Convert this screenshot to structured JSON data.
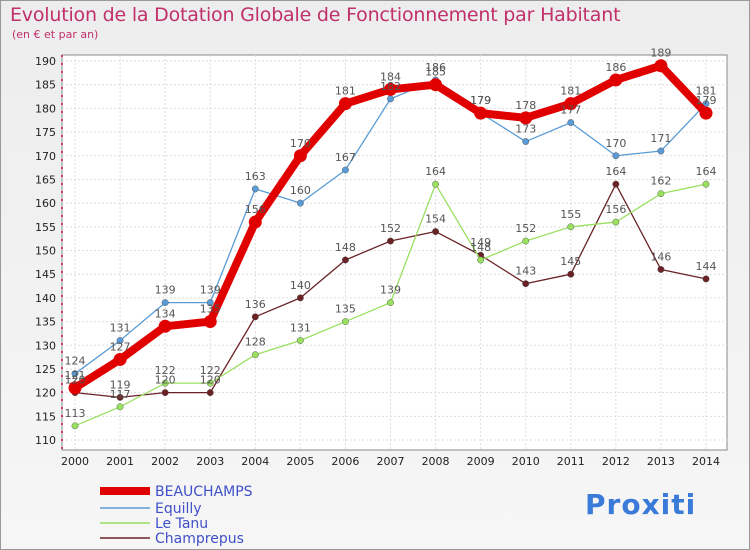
{
  "chart_data": {
    "type": "line",
    "title": "Evolution de la Dotation Globale de Fonctionnement par Habitant",
    "subtitle": "(en € et par an)",
    "x": [
      "2000",
      "2001",
      "2002",
      "2003",
      "2004",
      "2005",
      "2006",
      "2007",
      "2008",
      "2009",
      "2010",
      "2011",
      "2012",
      "2013",
      "2014"
    ],
    "ylim": [
      110,
      190
    ],
    "yticks": [
      110,
      115,
      120,
      125,
      130,
      135,
      140,
      145,
      150,
      155,
      160,
      165,
      170,
      175,
      180,
      185,
      190
    ],
    "grid": true,
    "legend_position": "bottom-left",
    "series": [
      {
        "name": "BEAUCHAMPS",
        "color": "#e00000",
        "values": [
          121,
          127,
          134,
          135,
          156,
          170,
          181,
          184,
          185,
          179,
          178,
          181,
          186,
          189,
          179
        ]
      },
      {
        "name": "Equilly",
        "color": "#5a9bd5",
        "values": [
          124,
          131,
          139,
          139,
          163,
          160,
          167,
          182,
          186,
          179,
          173,
          177,
          170,
          171,
          181
        ]
      },
      {
        "name": "Le Tanu",
        "color": "#99e060",
        "values": [
          113,
          117,
          122,
          122,
          128,
          131,
          135,
          139,
          164,
          148,
          152,
          155,
          156,
          162,
          164
        ]
      },
      {
        "name": "Champrepus",
        "color": "#6b2226",
        "values": [
          120,
          119,
          120,
          120,
          136,
          140,
          148,
          152,
          154,
          149,
          143,
          145,
          164,
          146,
          144
        ]
      }
    ]
  },
  "logo": {
    "text": "Proxiti"
  }
}
